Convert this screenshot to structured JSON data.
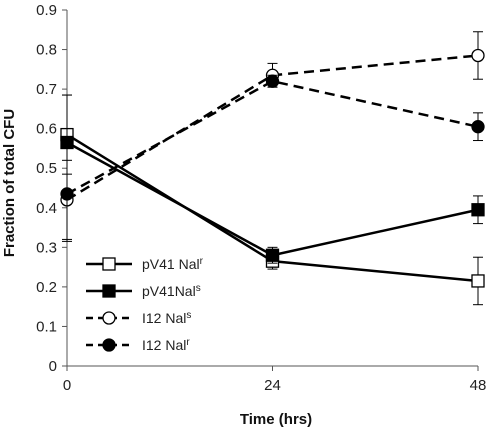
{
  "chart_data": {
    "type": "line",
    "title": "",
    "xlabel": "Time (hrs)",
    "ylabel": "Fraction of total CFU",
    "x": [
      0,
      24,
      48
    ],
    "x_ticks": [
      "0",
      "24",
      "48"
    ],
    "ylim": [
      0,
      0.9
    ],
    "y_ticks": [
      "0",
      "0.1",
      "0.2",
      "0.3",
      "0.4",
      "0.5",
      "0.6",
      "0.7",
      "0.8",
      "0.9"
    ],
    "grid": false,
    "legend_position": "bottom-left",
    "series": [
      {
        "name": "pV41 Nal",
        "sup": "r",
        "marker": "square-open",
        "line": "solid",
        "values": [
          0.585,
          0.265,
          0.215
        ],
        "err": [
          0.1,
          0.02,
          0.06
        ]
      },
      {
        "name": "pV41Nal",
        "sup": "s",
        "marker": "square-filled",
        "line": "solid",
        "values": [
          0.565,
          0.28,
          0.395
        ],
        "err": [
          0.12,
          0.02,
          0.035
        ]
      },
      {
        "name": "I12 Nal",
        "sup": "s",
        "marker": "circle-open",
        "line": "dashed",
        "values": [
          0.42,
          0.735,
          0.785
        ],
        "err": [
          0.1,
          0.03,
          0.06
        ]
      },
      {
        "name": "I12 Nal",
        "sup": "r",
        "marker": "circle-filled",
        "line": "dashed",
        "values": [
          0.435,
          0.72,
          0.605
        ],
        "err": [
          0.12,
          0.015,
          0.035
        ]
      }
    ]
  }
}
